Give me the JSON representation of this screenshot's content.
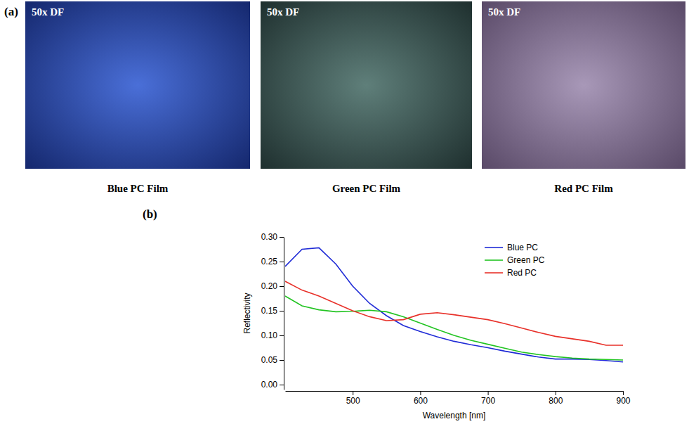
{
  "panels": {
    "a": {
      "label": "(a)",
      "images": [
        {
          "overlay": "50x DF",
          "caption": "Blue PC Film"
        },
        {
          "overlay": "50x DF",
          "caption": "Green PC Film"
        },
        {
          "overlay": "50x DF",
          "caption": "Red PC Film"
        }
      ]
    },
    "b": {
      "label": "(b)"
    }
  },
  "chart_data": {
    "type": "line",
    "x_label": "Wavelength [nm]",
    "y_label": "Reflectivity",
    "x": [
      400,
      425,
      450,
      475,
      500,
      525,
      550,
      575,
      600,
      625,
      650,
      675,
      700,
      725,
      750,
      775,
      800,
      825,
      850,
      875,
      900
    ],
    "series": [
      {
        "name": "Blue PC",
        "color": "#1f2bd6",
        "values": [
          0.24,
          0.275,
          0.278,
          0.245,
          0.2,
          0.165,
          0.14,
          0.12,
          0.108,
          0.097,
          0.088,
          0.081,
          0.075,
          0.068,
          0.062,
          0.056,
          0.052,
          0.052,
          0.051,
          0.049,
          0.046
        ]
      },
      {
        "name": "Green PC",
        "color": "#22c422",
        "values": [
          0.18,
          0.16,
          0.152,
          0.148,
          0.149,
          0.151,
          0.148,
          0.138,
          0.125,
          0.112,
          0.1,
          0.09,
          0.082,
          0.074,
          0.066,
          0.061,
          0.057,
          0.054,
          0.052,
          0.051,
          0.05
        ]
      },
      {
        "name": "Red PC",
        "color": "#e8312a",
        "values": [
          0.21,
          0.192,
          0.18,
          0.165,
          0.15,
          0.138,
          0.13,
          0.132,
          0.143,
          0.146,
          0.142,
          0.137,
          0.132,
          0.124,
          0.115,
          0.106,
          0.098,
          0.093,
          0.088,
          0.08,
          0.08
        ]
      }
    ],
    "xlim": [
      400,
      900
    ],
    "xticks": [
      500,
      600,
      700,
      800,
      900
    ],
    "ylim": [
      -0.01,
      0.3
    ],
    "yticks": [
      {
        "value": 0,
        "label": "0.00"
      },
      {
        "value": 0.05,
        "label": "0.05"
      },
      {
        "value": 0.1,
        "label": "0.10"
      },
      {
        "value": 0.15,
        "label": "0.15"
      },
      {
        "value": 0.2,
        "label": "0.20"
      },
      {
        "value": 0.25,
        "label": "0.25"
      },
      {
        "value": 0.3,
        "label": "0.30"
      }
    ],
    "grid": false,
    "legend": "top-right"
  }
}
